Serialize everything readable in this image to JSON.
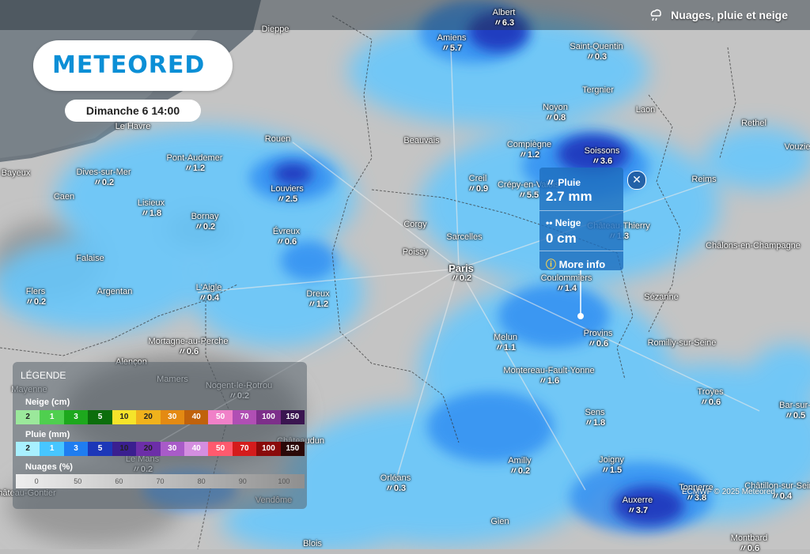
{
  "layer": {
    "title": "Nuages, pluie et neige",
    "icon": "cloud-rain-icon"
  },
  "brand": {
    "logo": "METEORED"
  },
  "datetime": "Dimanche 6 14:00",
  "popup": {
    "rain_label": "Pluie",
    "rain_value": "2.7 mm",
    "snow_label": "Neige",
    "snow_value": "0 cm",
    "more": "More info",
    "close_icon": "close-icon"
  },
  "cities": [
    {
      "name": "Albert",
      "value": "6.3"
    },
    {
      "name": "Amiens",
      "value": "5.7"
    },
    {
      "name": "Saint-Quentin",
      "value": "0.3"
    },
    {
      "name": "Dieppe",
      "value": ""
    },
    {
      "name": "Tergnier",
      "value": ""
    },
    {
      "name": "Noyon",
      "value": "0.8"
    },
    {
      "name": "Laon",
      "value": ""
    },
    {
      "name": "Rethel",
      "value": ""
    },
    {
      "name": "Le Havre",
      "value": ""
    },
    {
      "name": "Rouen",
      "value": ""
    },
    {
      "name": "Beauvais",
      "value": ""
    },
    {
      "name": "Compiègne",
      "value": "1.2"
    },
    {
      "name": "Soissons",
      "value": "3.6"
    },
    {
      "name": "Vouzie",
      "value": ""
    },
    {
      "name": "Pont-Audemer",
      "value": "1.2"
    },
    {
      "name": "Bayeux",
      "value": ""
    },
    {
      "name": "Dives-sur-Mer",
      "value": "0.2"
    },
    {
      "name": "Creil",
      "value": "0.9"
    },
    {
      "name": "Crépy-en-Valois",
      "value": "5.5"
    },
    {
      "name": "Reims",
      "value": ""
    },
    {
      "name": "Caen",
      "value": ""
    },
    {
      "name": "Lisieux",
      "value": "1.8"
    },
    {
      "name": "Louviers",
      "value": "2.5"
    },
    {
      "name": "Bornay",
      "value": "0.2"
    },
    {
      "name": "Corgy",
      "value": ""
    },
    {
      "name": "Sarcelles",
      "value": ""
    },
    {
      "name": "Château-Thierry",
      "value": "1.3"
    },
    {
      "name": "Évreux",
      "value": "0.6"
    },
    {
      "name": "Poissy",
      "value": ""
    },
    {
      "name": "Châlons-en-Champagne",
      "value": ""
    },
    {
      "name": "Falaise",
      "value": ""
    },
    {
      "name": "Paris",
      "value": "0.2"
    },
    {
      "name": "Coulommiers",
      "value": "1.4"
    },
    {
      "name": "Flers",
      "value": "0.2"
    },
    {
      "name": "Argentan",
      "value": ""
    },
    {
      "name": "L'Aigle",
      "value": "0.4"
    },
    {
      "name": "Dreux",
      "value": "1.2"
    },
    {
      "name": "Sézanne",
      "value": ""
    },
    {
      "name": "Melun",
      "value": "1.1"
    },
    {
      "name": "Provins",
      "value": "0.6"
    },
    {
      "name": "Romilly-sur-Seine",
      "value": ""
    },
    {
      "name": "Mortagne-au-Perche",
      "value": "0.6"
    },
    {
      "name": "Alençon",
      "value": ""
    },
    {
      "name": "Mamers",
      "value": ""
    },
    {
      "name": "Montereau-Fault-Yonne",
      "value": "1.6"
    },
    {
      "name": "Mayenne",
      "value": ""
    },
    {
      "name": "Nogent-le-Rotrou",
      "value": "0.2"
    },
    {
      "name": "Troyes",
      "value": "0.6"
    },
    {
      "name": "Bar-sur-",
      "value": "0.5"
    },
    {
      "name": "Sens",
      "value": "1.8"
    },
    {
      "name": "Châteaudun",
      "value": ""
    },
    {
      "name": "Amilly",
      "value": "0.2"
    },
    {
      "name": "Joigny",
      "value": "1.5"
    },
    {
      "name": "Orléans",
      "value": "0.3"
    },
    {
      "name": "Tonnerre",
      "value": "3.8"
    },
    {
      "name": "Châtillon-sur-Seine",
      "value": "0.4"
    },
    {
      "name": "Auxerre",
      "value": "3.7"
    },
    {
      "name": "Vendôme",
      "value": ""
    },
    {
      "name": "Gien",
      "value": ""
    },
    {
      "name": "Blois",
      "value": ""
    },
    {
      "name": "Montbard",
      "value": "0.6"
    },
    {
      "name": "Château-Gontier",
      "value": ""
    },
    {
      "name": "Le Mans",
      "value": "0.2"
    }
  ],
  "legend": {
    "title": "LÉGENDE",
    "snow_title": "Neige (cm)",
    "snow_steps": [
      "2",
      "1",
      "3",
      "5",
      "10",
      "20",
      "30",
      "40",
      "50",
      "70",
      "100",
      "150"
    ],
    "snow_colors": [
      "#9be89b",
      "#4fcf4f",
      "#1da81d",
      "#0c6e0c",
      "#f5e42a",
      "#f0b21c",
      "#e48a12",
      "#c0620c",
      "#f080c8",
      "#b04fb4",
      "#7d2f8a",
      "#3a1550"
    ],
    "rain_title": "Pluie (mm)",
    "rain_steps": [
      "2",
      "1",
      "3",
      "5",
      "10",
      "20",
      "30",
      "40",
      "50",
      "70",
      "100",
      "150"
    ],
    "rain_colors": [
      "#a8f0ff",
      "#47c6ff",
      "#1f7df0",
      "#1c37b8",
      "#3a1f8f",
      "#6c2ea8",
      "#a85bc8",
      "#d48ee0",
      "#ff5a6e",
      "#d41c1c",
      "#8a0a0a",
      "#2a0808"
    ],
    "cloud_title": "Nuages (%)",
    "cloud_steps": [
      "0",
      "50",
      "60",
      "70",
      "80",
      "90",
      "100"
    ]
  },
  "credit": "ECMWF © 2025 Meteored"
}
